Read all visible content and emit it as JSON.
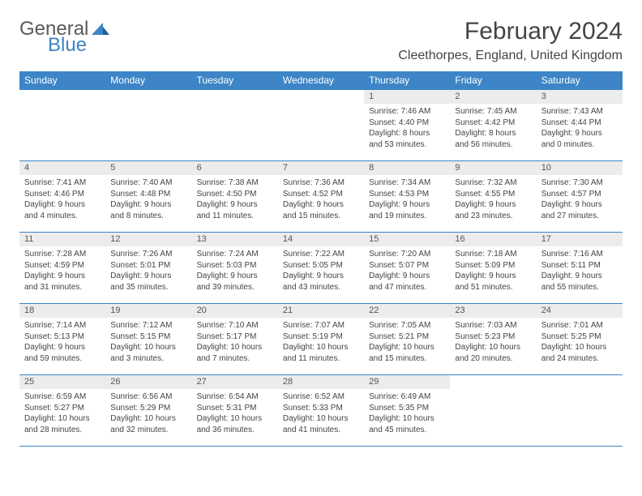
{
  "logo": {
    "text1": "General",
    "text2": "Blue"
  },
  "header": {
    "month_title": "February 2024",
    "location": "Cleethorpes, England, United Kingdom"
  },
  "colors": {
    "header_bg": "#3d85c6",
    "header_text": "#ffffff",
    "grid_line": "#3d85c6",
    "daynum_bg": "#ececec",
    "body_text": "#444444"
  },
  "day_headers": [
    "Sunday",
    "Monday",
    "Tuesday",
    "Wednesday",
    "Thursday",
    "Friday",
    "Saturday"
  ],
  "weeks": [
    [
      null,
      null,
      null,
      null,
      {
        "day": "1",
        "sunrise": "Sunrise: 7:46 AM",
        "sunset": "Sunset: 4:40 PM",
        "daylight1": "Daylight: 8 hours",
        "daylight2": "and 53 minutes."
      },
      {
        "day": "2",
        "sunrise": "Sunrise: 7:45 AM",
        "sunset": "Sunset: 4:42 PM",
        "daylight1": "Daylight: 8 hours",
        "daylight2": "and 56 minutes."
      },
      {
        "day": "3",
        "sunrise": "Sunrise: 7:43 AM",
        "sunset": "Sunset: 4:44 PM",
        "daylight1": "Daylight: 9 hours",
        "daylight2": "and 0 minutes."
      }
    ],
    [
      {
        "day": "4",
        "sunrise": "Sunrise: 7:41 AM",
        "sunset": "Sunset: 4:46 PM",
        "daylight1": "Daylight: 9 hours",
        "daylight2": "and 4 minutes."
      },
      {
        "day": "5",
        "sunrise": "Sunrise: 7:40 AM",
        "sunset": "Sunset: 4:48 PM",
        "daylight1": "Daylight: 9 hours",
        "daylight2": "and 8 minutes."
      },
      {
        "day": "6",
        "sunrise": "Sunrise: 7:38 AM",
        "sunset": "Sunset: 4:50 PM",
        "daylight1": "Daylight: 9 hours",
        "daylight2": "and 11 minutes."
      },
      {
        "day": "7",
        "sunrise": "Sunrise: 7:36 AM",
        "sunset": "Sunset: 4:52 PM",
        "daylight1": "Daylight: 9 hours",
        "daylight2": "and 15 minutes."
      },
      {
        "day": "8",
        "sunrise": "Sunrise: 7:34 AM",
        "sunset": "Sunset: 4:53 PM",
        "daylight1": "Daylight: 9 hours",
        "daylight2": "and 19 minutes."
      },
      {
        "day": "9",
        "sunrise": "Sunrise: 7:32 AM",
        "sunset": "Sunset: 4:55 PM",
        "daylight1": "Daylight: 9 hours",
        "daylight2": "and 23 minutes."
      },
      {
        "day": "10",
        "sunrise": "Sunrise: 7:30 AM",
        "sunset": "Sunset: 4:57 PM",
        "daylight1": "Daylight: 9 hours",
        "daylight2": "and 27 minutes."
      }
    ],
    [
      {
        "day": "11",
        "sunrise": "Sunrise: 7:28 AM",
        "sunset": "Sunset: 4:59 PM",
        "daylight1": "Daylight: 9 hours",
        "daylight2": "and 31 minutes."
      },
      {
        "day": "12",
        "sunrise": "Sunrise: 7:26 AM",
        "sunset": "Sunset: 5:01 PM",
        "daylight1": "Daylight: 9 hours",
        "daylight2": "and 35 minutes."
      },
      {
        "day": "13",
        "sunrise": "Sunrise: 7:24 AM",
        "sunset": "Sunset: 5:03 PM",
        "daylight1": "Daylight: 9 hours",
        "daylight2": "and 39 minutes."
      },
      {
        "day": "14",
        "sunrise": "Sunrise: 7:22 AM",
        "sunset": "Sunset: 5:05 PM",
        "daylight1": "Daylight: 9 hours",
        "daylight2": "and 43 minutes."
      },
      {
        "day": "15",
        "sunrise": "Sunrise: 7:20 AM",
        "sunset": "Sunset: 5:07 PM",
        "daylight1": "Daylight: 9 hours",
        "daylight2": "and 47 minutes."
      },
      {
        "day": "16",
        "sunrise": "Sunrise: 7:18 AM",
        "sunset": "Sunset: 5:09 PM",
        "daylight1": "Daylight: 9 hours",
        "daylight2": "and 51 minutes."
      },
      {
        "day": "17",
        "sunrise": "Sunrise: 7:16 AM",
        "sunset": "Sunset: 5:11 PM",
        "daylight1": "Daylight: 9 hours",
        "daylight2": "and 55 minutes."
      }
    ],
    [
      {
        "day": "18",
        "sunrise": "Sunrise: 7:14 AM",
        "sunset": "Sunset: 5:13 PM",
        "daylight1": "Daylight: 9 hours",
        "daylight2": "and 59 minutes."
      },
      {
        "day": "19",
        "sunrise": "Sunrise: 7:12 AM",
        "sunset": "Sunset: 5:15 PM",
        "daylight1": "Daylight: 10 hours",
        "daylight2": "and 3 minutes."
      },
      {
        "day": "20",
        "sunrise": "Sunrise: 7:10 AM",
        "sunset": "Sunset: 5:17 PM",
        "daylight1": "Daylight: 10 hours",
        "daylight2": "and 7 minutes."
      },
      {
        "day": "21",
        "sunrise": "Sunrise: 7:07 AM",
        "sunset": "Sunset: 5:19 PM",
        "daylight1": "Daylight: 10 hours",
        "daylight2": "and 11 minutes."
      },
      {
        "day": "22",
        "sunrise": "Sunrise: 7:05 AM",
        "sunset": "Sunset: 5:21 PM",
        "daylight1": "Daylight: 10 hours",
        "daylight2": "and 15 minutes."
      },
      {
        "day": "23",
        "sunrise": "Sunrise: 7:03 AM",
        "sunset": "Sunset: 5:23 PM",
        "daylight1": "Daylight: 10 hours",
        "daylight2": "and 20 minutes."
      },
      {
        "day": "24",
        "sunrise": "Sunrise: 7:01 AM",
        "sunset": "Sunset: 5:25 PM",
        "daylight1": "Daylight: 10 hours",
        "daylight2": "and 24 minutes."
      }
    ],
    [
      {
        "day": "25",
        "sunrise": "Sunrise: 6:59 AM",
        "sunset": "Sunset: 5:27 PM",
        "daylight1": "Daylight: 10 hours",
        "daylight2": "and 28 minutes."
      },
      {
        "day": "26",
        "sunrise": "Sunrise: 6:56 AM",
        "sunset": "Sunset: 5:29 PM",
        "daylight1": "Daylight: 10 hours",
        "daylight2": "and 32 minutes."
      },
      {
        "day": "27",
        "sunrise": "Sunrise: 6:54 AM",
        "sunset": "Sunset: 5:31 PM",
        "daylight1": "Daylight: 10 hours",
        "daylight2": "and 36 minutes."
      },
      {
        "day": "28",
        "sunrise": "Sunrise: 6:52 AM",
        "sunset": "Sunset: 5:33 PM",
        "daylight1": "Daylight: 10 hours",
        "daylight2": "and 41 minutes."
      },
      {
        "day": "29",
        "sunrise": "Sunrise: 6:49 AM",
        "sunset": "Sunset: 5:35 PM",
        "daylight1": "Daylight: 10 hours",
        "daylight2": "and 45 minutes."
      },
      null,
      null
    ]
  ]
}
